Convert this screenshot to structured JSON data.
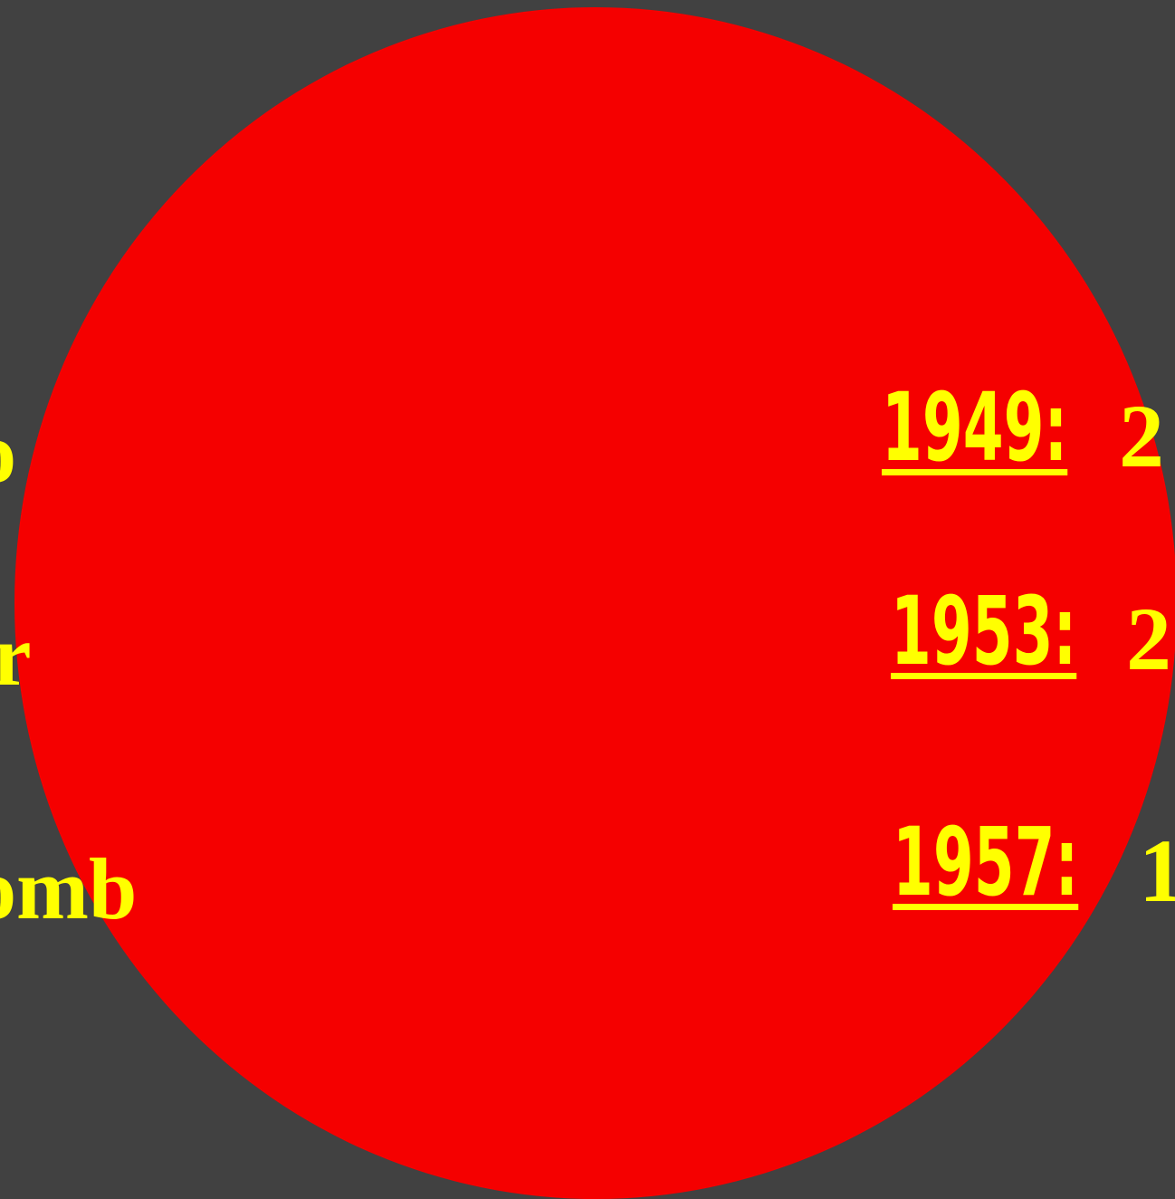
{
  "left_labels": [
    "o",
    "r",
    "omb"
  ],
  "entries": [
    {
      "year": "1949:",
      "value": "2"
    },
    {
      "year": "1953:",
      "value": "2"
    },
    {
      "year": "1957:",
      "value": "1"
    }
  ]
}
